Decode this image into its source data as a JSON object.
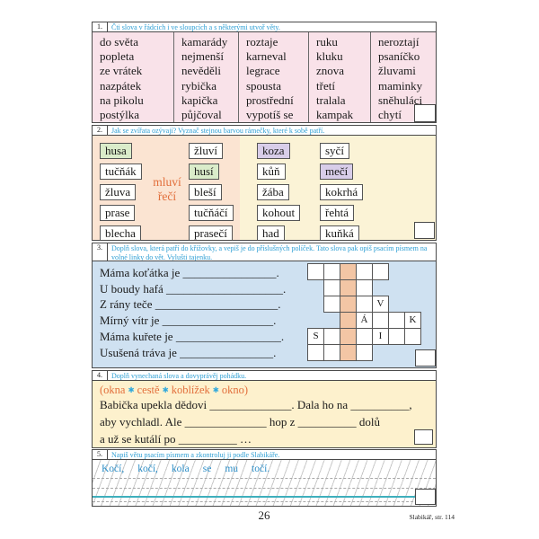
{
  "colors": {
    "pink": "#f9e2e9",
    "peach": "#fbe4d2",
    "yellow_sounds": "#fbf3d6",
    "blue_crossword": "#cfe1f1",
    "salmon_highlight": "#f3c6a5",
    "yellow_story": "#fdf1cd",
    "green_match": "#daecca",
    "purple_match": "#d8cde9",
    "instruction_blue": "#2e9fd4",
    "orange_accent": "#e26f3c",
    "dot_blue": "#2fa8dc",
    "script_blue": "#2e8fc8",
    "teal_line": "#3fafbc"
  },
  "sections": {
    "s1": {
      "num": "1.",
      "instruction": "Čti slova v řádcích i ve sloupcích a s některými utvoř věty.",
      "columns": [
        [
          "do světa",
          "popleta",
          "ze vrátek",
          "nazpátek",
          "na pikolu",
          "postýlka"
        ],
        [
          "kamarády",
          "nejmenší",
          "nevěděli",
          "rybička",
          "kapička",
          "půjčoval"
        ],
        [
          "roztaje",
          "karneval",
          "legrace",
          "spousta",
          "prostřední",
          "vypotíš se"
        ],
        [
          "ruku",
          "kluku",
          "znova",
          "třetí",
          "tralala",
          "kampak"
        ],
        [
          "neroztají",
          "psaníčko",
          "žluvami",
          "maminky",
          "sněhuláci",
          "chytí"
        ]
      ]
    },
    "s2": {
      "num": "2.",
      "instruction": "Jak se zvířata ozývají? Vyznač stejnou barvou rámečky, které k sobě patří.",
      "center_label": [
        "mluví",
        "řečí"
      ],
      "columns": [
        [
          {
            "w": "husa",
            "hl": "green"
          },
          {
            "w": "tučňák"
          },
          {
            "w": "žluva"
          },
          {
            "w": "prase"
          },
          {
            "w": "blecha"
          }
        ],
        [
          {
            "w": "žluví"
          },
          {
            "w": "husí",
            "hl": "green"
          },
          {
            "w": "bleší"
          },
          {
            "w": "tučňáčí"
          },
          {
            "w": "prasečí"
          }
        ],
        [
          {
            "w": "koza",
            "hl": "purple"
          },
          {
            "w": "kůň"
          },
          {
            "w": "žába"
          },
          {
            "w": "kohout"
          },
          {
            "w": "had"
          }
        ],
        [
          {
            "w": "syčí"
          },
          {
            "w": "mečí",
            "hl": "purple"
          },
          {
            "w": "kokrhá"
          },
          {
            "w": "řehtá"
          },
          {
            "w": "kuňká"
          }
        ]
      ]
    },
    "s3": {
      "num": "3.",
      "instruction": "Doplň slova, která patří do křížovky, a vepiš je do příslušných políček. Tato slova pak opiš psacím písmem na volné linky do vět. Vylušti tajenku.",
      "sentences": [
        "Máma koťátka je ________________.",
        "U boudy hafá ____________________.",
        "Z rány teče _____________________.",
        "Mírný vítr je ___________________.",
        "Máma kuřete je __________________.",
        "Usušená tráva je ________________."
      ],
      "crossword": {
        "rows": [
          "_____..",
          ".___...",
          ".___V..",
          ".._Á__K",
          "S___I__",
          "____..."
        ],
        "highlight_col": 3
      }
    },
    "s4": {
      "num": "4.",
      "instruction": "Doplň vynechaná slova a dovyprávěj pohádku.",
      "wordbank": [
        "okna",
        "cestě",
        "koblížek",
        "okno"
      ],
      "lines": [
        "Babička upekla dědovi ______________. Dala ho na __________,",
        "aby vychladl. Ale ______________ hop z __________ dolů",
        "a už se kutálí po __________ …"
      ]
    },
    "s5": {
      "num": "5.",
      "instruction": "Napiš větu psacím písmem a zkontroluj ji podle Slabikáře.",
      "sentence_words": [
        "Kočí,",
        "kočí,",
        "kola",
        "se",
        "mu",
        "točí."
      ]
    }
  },
  "footer": {
    "page_number": "26",
    "source": "Slabikář, str. 114"
  }
}
